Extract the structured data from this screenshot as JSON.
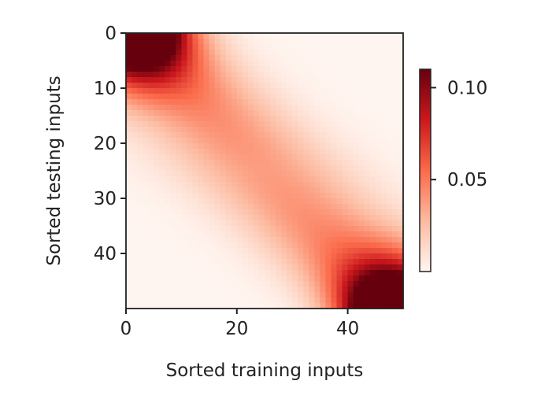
{
  "chart_data": {
    "type": "heatmap",
    "title": "",
    "xlabel": "Sorted training inputs",
    "ylabel": "Sorted testing inputs",
    "x_range": [
      0,
      50
    ],
    "y_range": [
      0,
      50
    ],
    "grid": false,
    "xticks": [
      {
        "value": 0,
        "label": "0"
      },
      {
        "value": 20,
        "label": "20"
      },
      {
        "value": 40,
        "label": "40"
      }
    ],
    "yticks": [
      {
        "value": 0,
        "label": "0"
      },
      {
        "value": 10,
        "label": "10"
      },
      {
        "value": 20,
        "label": "20"
      },
      {
        "value": 30,
        "label": "30"
      },
      {
        "value": 40,
        "label": "40"
      }
    ],
    "colormap": "Reds",
    "colormap_stops": [
      "#fff5f0",
      "#fcbba1",
      "#fb6a4a",
      "#cb181d",
      "#67000d"
    ],
    "colorbar": {
      "min": 0.0,
      "max": 0.11,
      "ticks": [
        {
          "value": 0.05,
          "label": "0.05"
        },
        {
          "value": 0.1,
          "label": "0.10"
        }
      ],
      "placement": "right"
    },
    "pattern": "band along the diagonal (training input ≈ testing input); strongest at top-left and bottom-right corners"
  }
}
